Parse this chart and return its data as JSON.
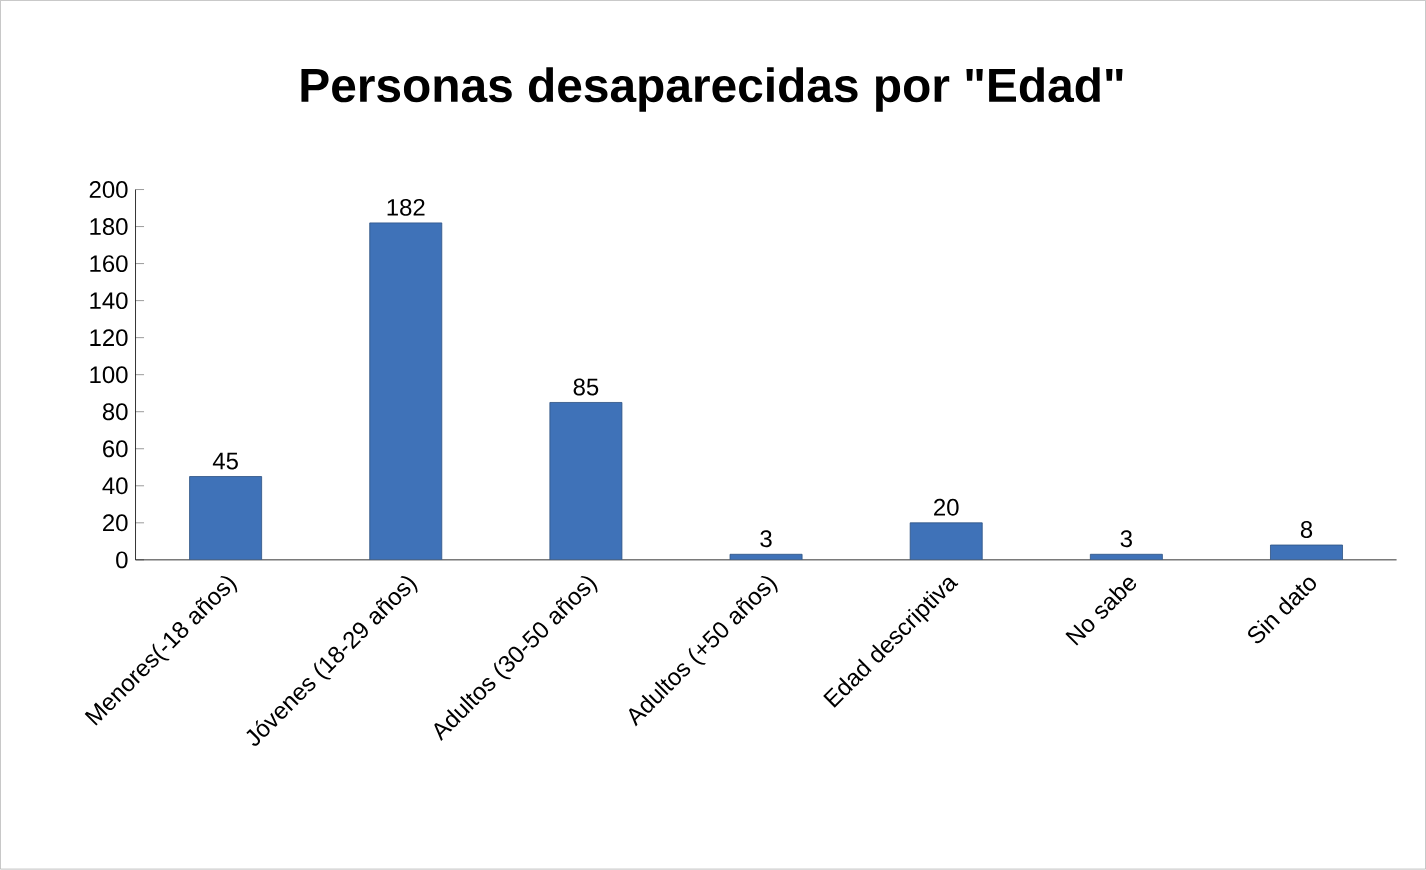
{
  "chart_data": {
    "type": "bar",
    "title": "Personas desaparecidas por \"Edad\"",
    "categories": [
      "Menores(-18 años)",
      "Jóvenes (18-29 años)",
      "Adultos (30-50 años)",
      "Adultos (+50 años)",
      "Edad descriptiva",
      "No sabe",
      "Sin dato"
    ],
    "values": [
      45,
      182,
      85,
      3,
      20,
      3,
      8
    ],
    "color": "#3f72b8",
    "ylim": [
      0,
      200
    ],
    "yticks": [
      0,
      20,
      40,
      60,
      80,
      100,
      120,
      140,
      160,
      180,
      200
    ],
    "data_labels": true
  }
}
